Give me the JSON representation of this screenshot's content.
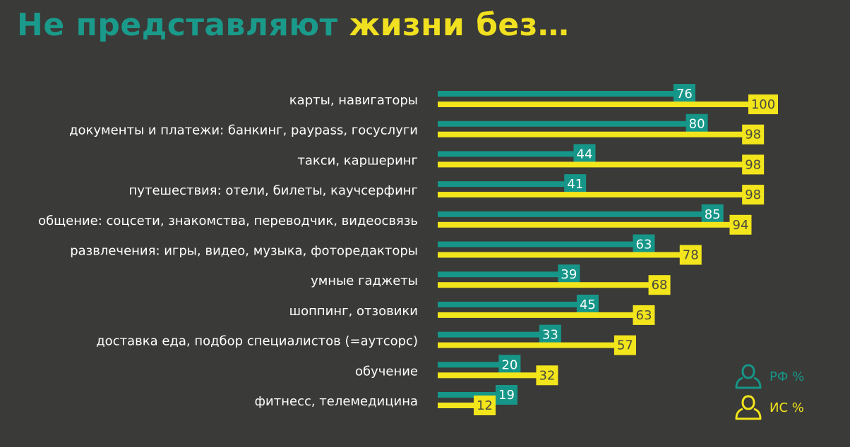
{
  "title_part1": "Не представляют",
  "title_part2": "жизни без…",
  "colors": {
    "rf": "#169688",
    "is": "#f2e51b",
    "background": "#3a3a38"
  },
  "legend": [
    {
      "label": "РФ %",
      "color": "#169688",
      "icon": "person-icon"
    },
    {
      "label": "ИС %",
      "color": "#f2e51b",
      "icon": "person-icon"
    }
  ],
  "chart_data": {
    "type": "bar",
    "orientation": "horizontal",
    "xlim": [
      0,
      100
    ],
    "categories": [
      "карты, навигаторы",
      "документы и платежи: банкинг, paypass, госуслуги",
      "такси, каршеринг",
      "путешествия: отели, билеты, каучсерфинг",
      "общение: соцсети, знакомства, переводчик, видеосвязь",
      "развлечения: игры, видео, музыка, фоторедакторы",
      "умные гаджеты",
      "шоппинг, отзовики",
      "доставка еда, подбор специалистов (=аутсорс)",
      "обучение",
      "фитнесс, телемедицина"
    ],
    "series": [
      {
        "name": "РФ %",
        "color": "#169688",
        "values": [
          76,
          80,
          44,
          41,
          85,
          63,
          39,
          45,
          33,
          20,
          19
        ]
      },
      {
        "name": "ИС %",
        "color": "#f2e51b",
        "values": [
          100,
          98,
          98,
          98,
          94,
          78,
          68,
          63,
          57,
          32,
          12
        ]
      }
    ]
  }
}
